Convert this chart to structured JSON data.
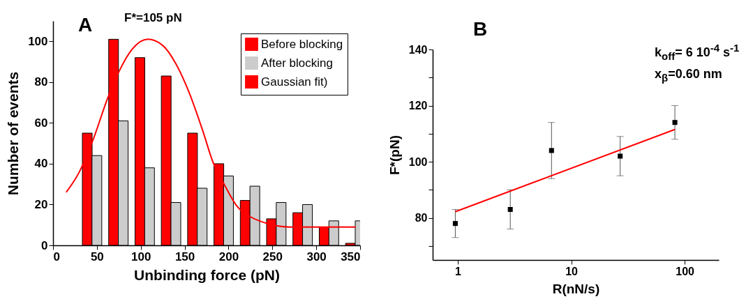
{
  "chart_data": [
    {
      "type": "bar",
      "xlabel": "Unbinding force (pN)",
      "ylabel": "Number of events",
      "annotations": [
        "A",
        "F*=105 pN"
      ],
      "series": [
        {
          "name": "Before blocking",
          "color": "#ff0000",
          "x": [
            39,
            69,
            99,
            129,
            159,
            189,
            219,
            249,
            279,
            309,
            339
          ],
          "values": [
            55,
            101,
            92,
            83,
            55,
            40,
            22,
            13,
            16,
            9,
            1
          ]
        },
        {
          "name": "After blocking",
          "color": "#cccccc",
          "x": [
            50,
            80,
            110,
            140,
            170,
            200,
            230,
            260,
            290,
            320,
            350
          ],
          "values": [
            44,
            61,
            38,
            21,
            28,
            34,
            29,
            21,
            20,
            12,
            12
          ]
        },
        {
          "name": "Gaussian fit)",
          "type": "line",
          "color": "#ff0000",
          "x": [
            15,
            30,
            45,
            63,
            75,
            90,
            108,
            125,
            140,
            155,
            170,
            183,
            195,
            210,
            225,
            245,
            270,
            300,
            345
          ],
          "values": [
            26,
            36,
            51,
            73,
            85,
            96,
            101,
            98,
            89,
            75,
            57,
            40,
            30,
            19,
            14,
            10.6,
            9,
            9,
            9
          ]
        }
      ],
      "xlim": [
        0,
        350
      ],
      "xticks": [
        0,
        50,
        100,
        150,
        200,
        250,
        300,
        350
      ],
      "ylim": [
        0,
        110
      ],
      "yticks": [
        0,
        20,
        40,
        60,
        80,
        100
      ],
      "legend": "top right",
      "grid": false
    },
    {
      "type": "scatter",
      "xlabel": "R(nN/s)",
      "ylabel": "F*(pN)",
      "annotations": [
        "B",
        "k$_{off}$= 6 10$^{-4}$ s$^{-1}$",
        "x$_{β}$=0.60 nm"
      ],
      "series": [
        {
          "color": "#000000",
          "marker": "square",
          "x": [
            0.95,
            2.9,
            6.7,
            27,
            82
          ],
          "values": [
            78,
            83,
            104,
            102,
            114
          ],
          "errors": [
            [
              73,
              83
            ],
            [
              76,
              90
            ],
            [
              94,
              114
            ],
            [
              95,
              109
            ],
            [
              108,
              120
            ]
          ]
        },
        {
          "type": "line",
          "color": "#ff0000",
          "x": [
            0.95,
            82
          ],
          "values": [
            82.2,
            111.5
          ]
        }
      ],
      "xlim": [
        0.6,
        200
      ],
      "xticks": [
        1,
        10,
        100
      ],
      "ylim": [
        65,
        140
      ],
      "yticks": [
        {
          "value": 70,
          "label": null
        },
        80,
        {
          "value": 90,
          "label": null
        },
        100,
        {
          "value": 110,
          "label": null
        },
        120,
        {
          "value": 130,
          "label": null
        },
        140
      ],
      "log": "x",
      "legend": false,
      "grid": false
    }
  ]
}
